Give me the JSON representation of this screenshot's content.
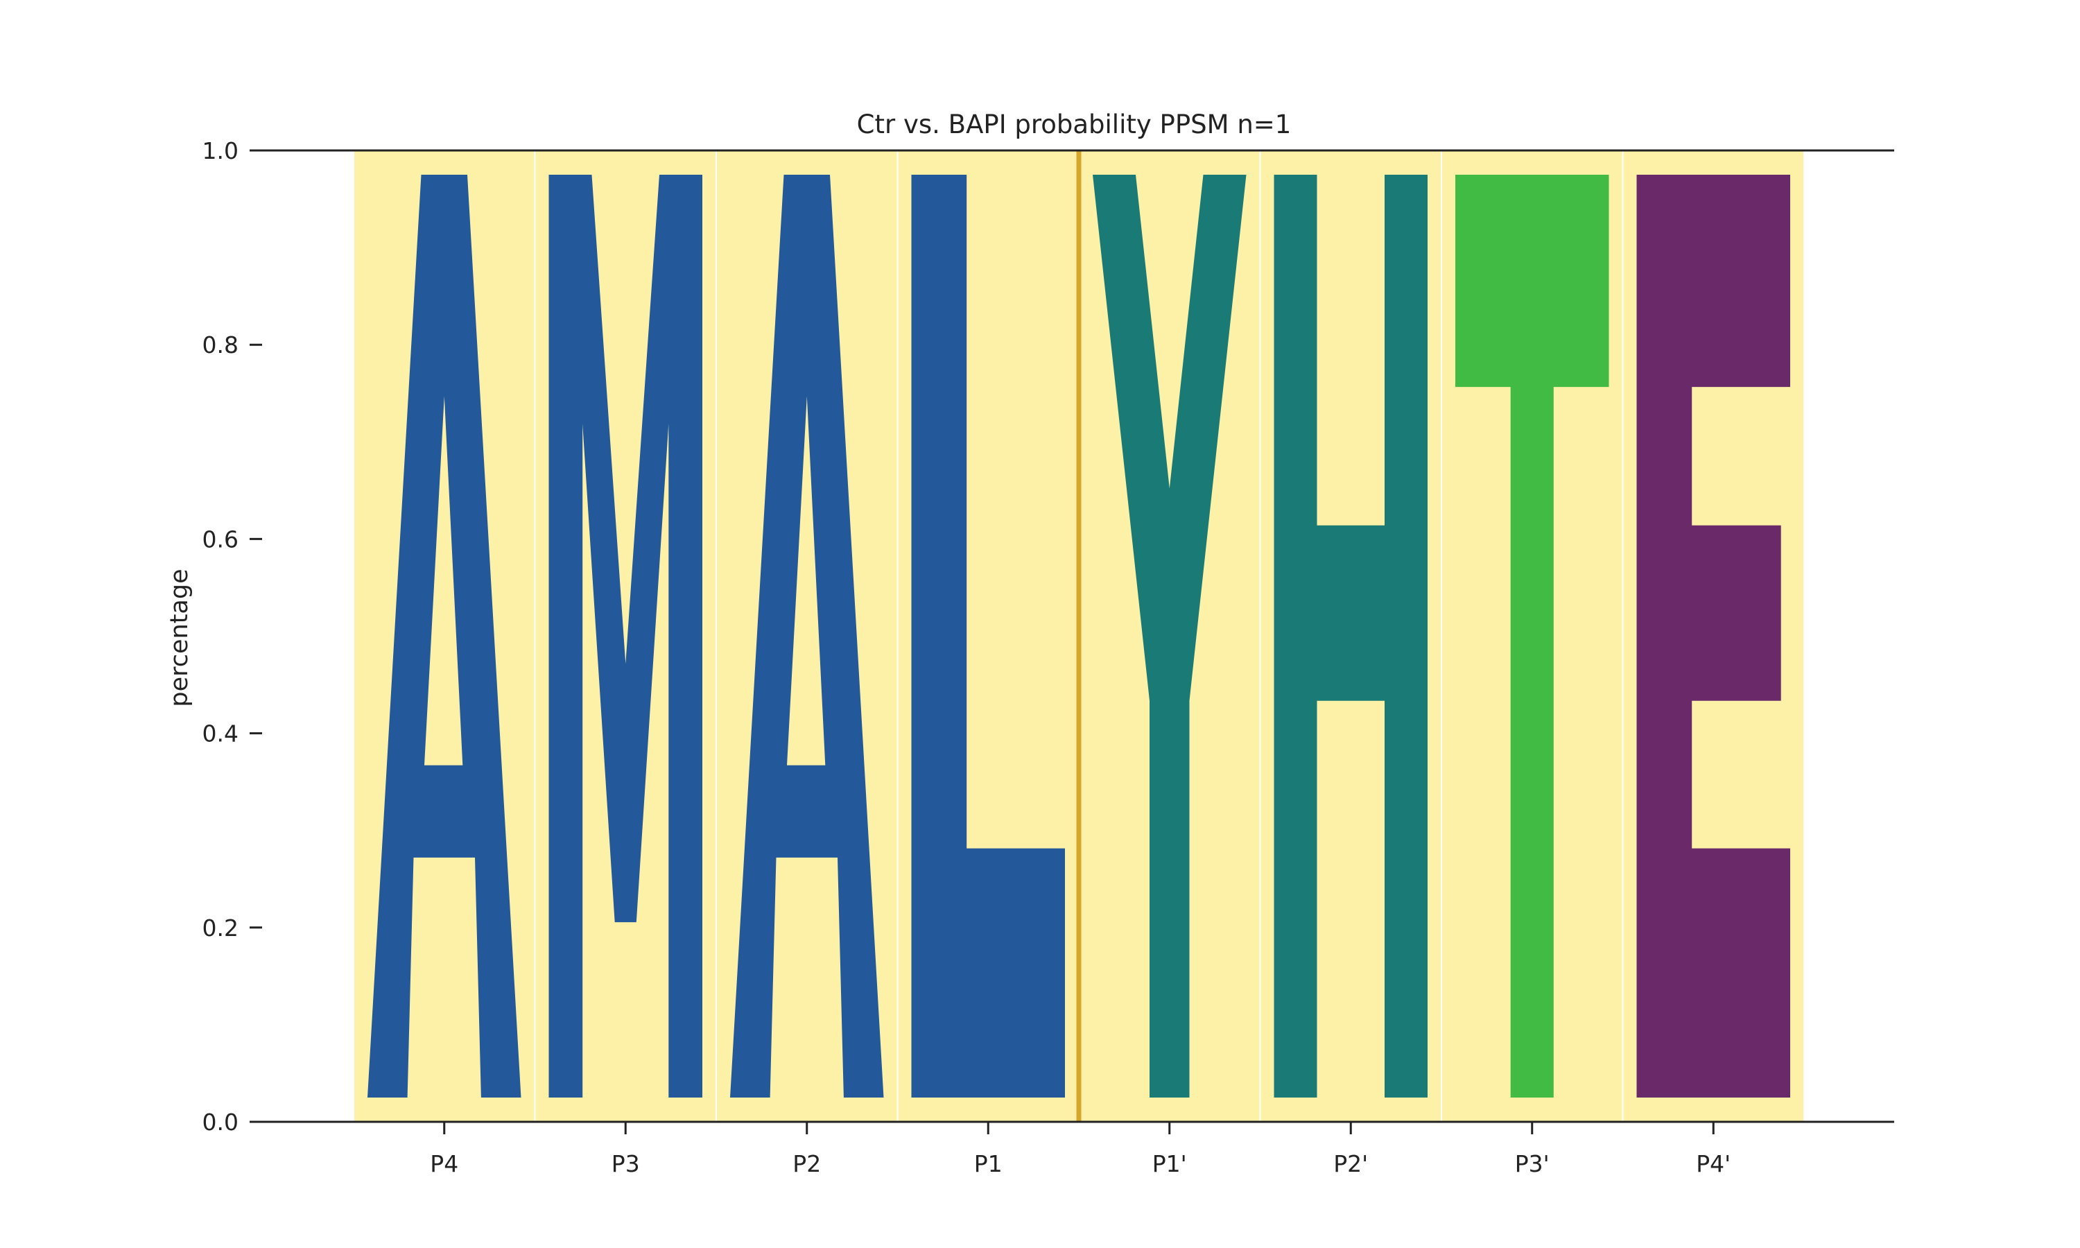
{
  "chart_data": {
    "type": "sequence-logo",
    "title": "Ctr vs. BAPI probability PPSM n=1",
    "xlabel": "",
    "ylabel": "percentage",
    "ylim": [
      0,
      1
    ],
    "yticks": [
      "0.0",
      "0.2",
      "0.4",
      "0.6",
      "0.8",
      "1.0"
    ],
    "positions": [
      "P4",
      "P3",
      "P2",
      "P1",
      "P1'",
      "P2'",
      "P3'",
      "P4'"
    ],
    "series": [
      {
        "position": "P4",
        "residue": "A",
        "probability": 0.95,
        "color": "#23589a"
      },
      {
        "position": "P3",
        "residue": "M",
        "probability": 0.95,
        "color": "#23589a"
      },
      {
        "position": "P2",
        "residue": "A",
        "probability": 0.95,
        "color": "#23589a"
      },
      {
        "position": "P1",
        "residue": "L",
        "probability": 0.95,
        "color": "#23589a"
      },
      {
        "position": "P1'",
        "residue": "Y",
        "probability": 0.95,
        "color": "#1a7a76"
      },
      {
        "position": "P2'",
        "residue": "H",
        "probability": 0.95,
        "color": "#1a7a76"
      },
      {
        "position": "P3'",
        "residue": "T",
        "probability": 0.95,
        "color": "#42bb45"
      },
      {
        "position": "P4'",
        "residue": "E",
        "probability": 0.95,
        "color": "#6a2a69"
      }
    ],
    "background_color": "#fdf1a7",
    "cleavage_line_color": "#d6a72b",
    "cleavage_between": [
      "P1",
      "P1'"
    ],
    "grid": false
  }
}
